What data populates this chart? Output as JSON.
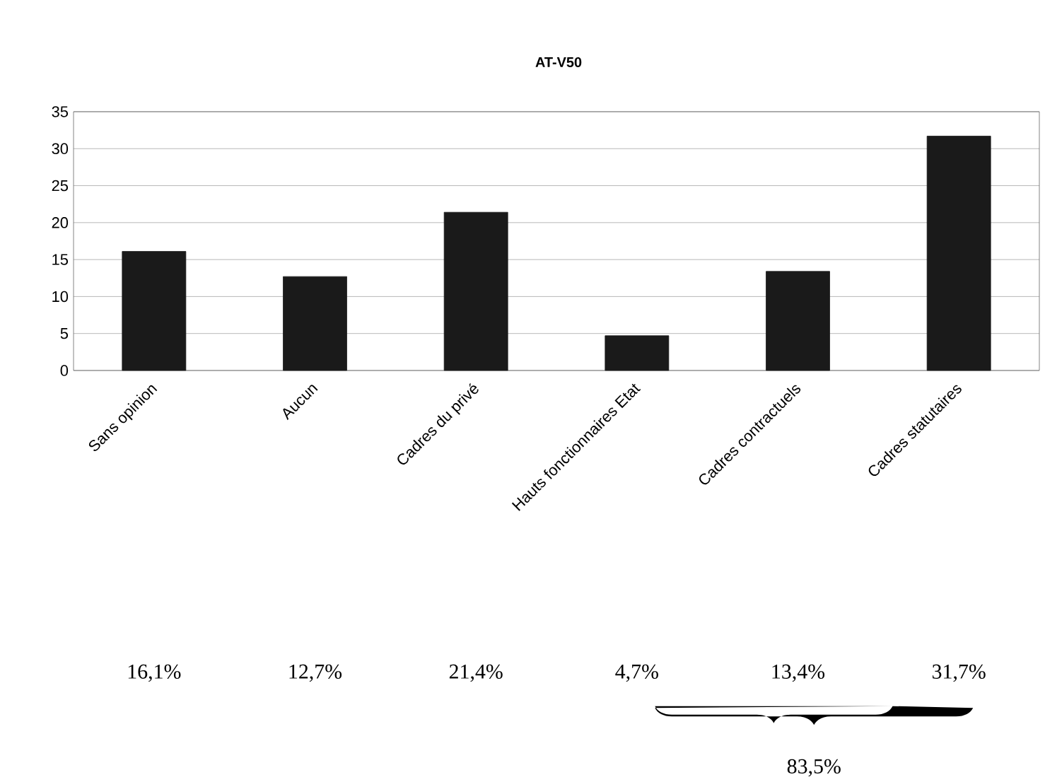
{
  "chart_data": {
    "type": "bar",
    "title": "AT-V50",
    "categories": [
      "Sans opinion",
      "Aucun",
      "Cadres du privé",
      "Hauts fonctionnaires Etat",
      "Cadres contractuels",
      "Cadres statutaires"
    ],
    "values": [
      16.1,
      12.7,
      21.4,
      4.7,
      13.4,
      31.7
    ],
    "value_labels": [
      "16,1%",
      "12,7%",
      "21,4%",
      "4,7%",
      "13,4%",
      "31,7%"
    ],
    "color": "#1a1a1a",
    "ylim": [
      0,
      35
    ],
    "yticks": [
      0,
      5,
      10,
      15,
      20,
      25,
      30,
      35
    ],
    "grid": "y",
    "annotations": [
      "83,5%"
    ]
  }
}
